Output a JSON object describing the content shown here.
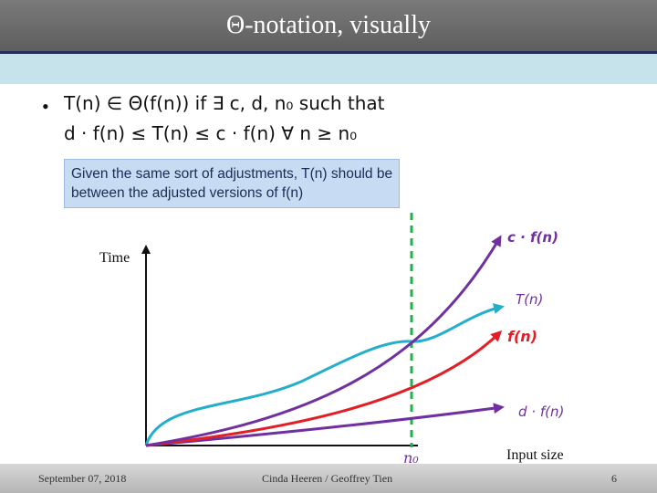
{
  "slide": {
    "title": "Θ-notation, visually",
    "bullet_symbol": "•",
    "definition_line1": "T(n) ∈ Θ(f(n)) if ∃ c, d, n₀ such that",
    "definition_line2": "d · f(n) ≤ T(n) ≤ c · f(n) ∀ n ≥ n₀",
    "note": "Given the same sort of adjustments, T(n) should be between the adjusted versions of f(n)"
  },
  "diagram": {
    "y_axis_label": "Time",
    "x_axis_label": "Input size",
    "threshold_label": "n₀",
    "curves": {
      "upper": {
        "label": "c · f(n)",
        "color": "#7030a0"
      },
      "actual": {
        "label": "T(n)",
        "color": "#23aecb"
      },
      "base": {
        "label": "f(n)",
        "color": "#e41e26"
      },
      "lower": {
        "label": "d · f(n)",
        "color": "#7030a0"
      }
    },
    "threshold_color": "#22b04b",
    "axis_color": "#111111"
  },
  "footer": {
    "date": "September 07, 2018",
    "authors": "Cinda Heeren / Geoffrey Tien",
    "page_number": "6"
  }
}
